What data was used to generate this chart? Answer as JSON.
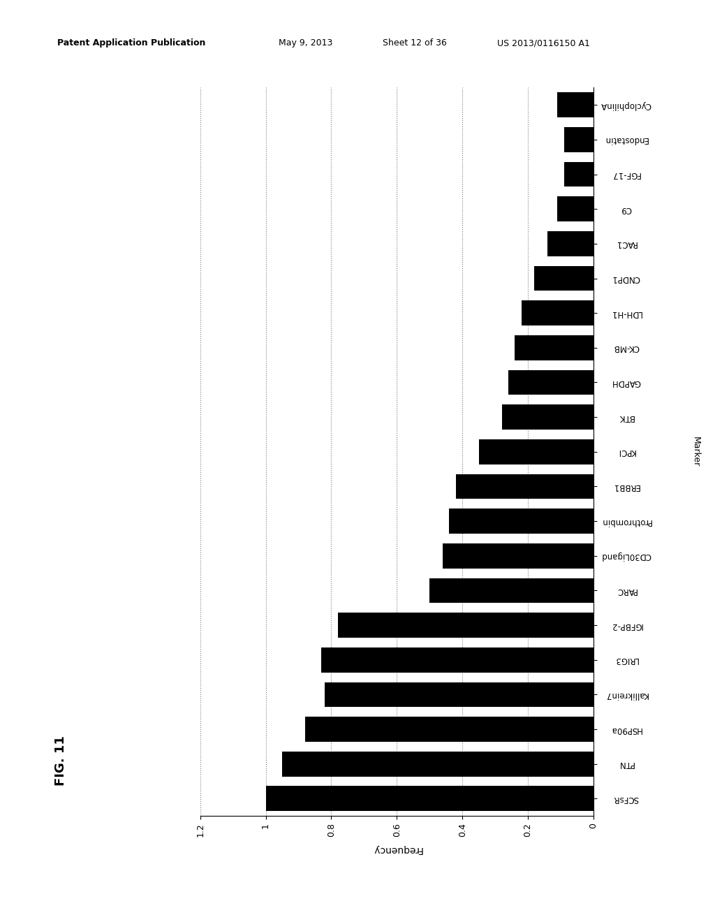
{
  "bar_color": "#000000",
  "background_color": "#ffffff",
  "categories": [
    "SCFsR",
    "PTN",
    "HSP90a",
    "Kallikrein7",
    "LRIG3",
    "IGFBP-2",
    "PARC",
    "CD30Ligand",
    "Prothrombin",
    "ERBB1",
    "KPCI",
    "BTK",
    "GAPDH",
    "CK-MB",
    "LDH-H1",
    "CNDP1",
    "RAC1",
    "C9",
    "FGF-17",
    "Endostatin",
    "CyclophilinA"
  ],
  "values": [
    1.0,
    0.95,
    0.88,
    0.82,
    0.83,
    0.78,
    0.5,
    0.46,
    0.44,
    0.42,
    0.35,
    0.28,
    0.26,
    0.24,
    0.22,
    0.18,
    0.14,
    0.11,
    0.09,
    0.09,
    0.11
  ],
  "xlabel": "Frequency",
  "ylabel": "Marker",
  "header_text": "Patent Application Publication",
  "header_date": "May 9, 2013",
  "header_sheet": "Sheet 12 of 36",
  "header_patent": "US 2013/0116150 A1",
  "fig_label": "FIG. 11",
  "xticks": [
    0,
    0.2,
    0.4,
    0.6,
    0.8,
    1.0,
    1.2
  ],
  "xtick_labels": [
    "0",
    "0.2",
    "0.4",
    "0.6",
    "0.8",
    "1",
    "1.2"
  ]
}
